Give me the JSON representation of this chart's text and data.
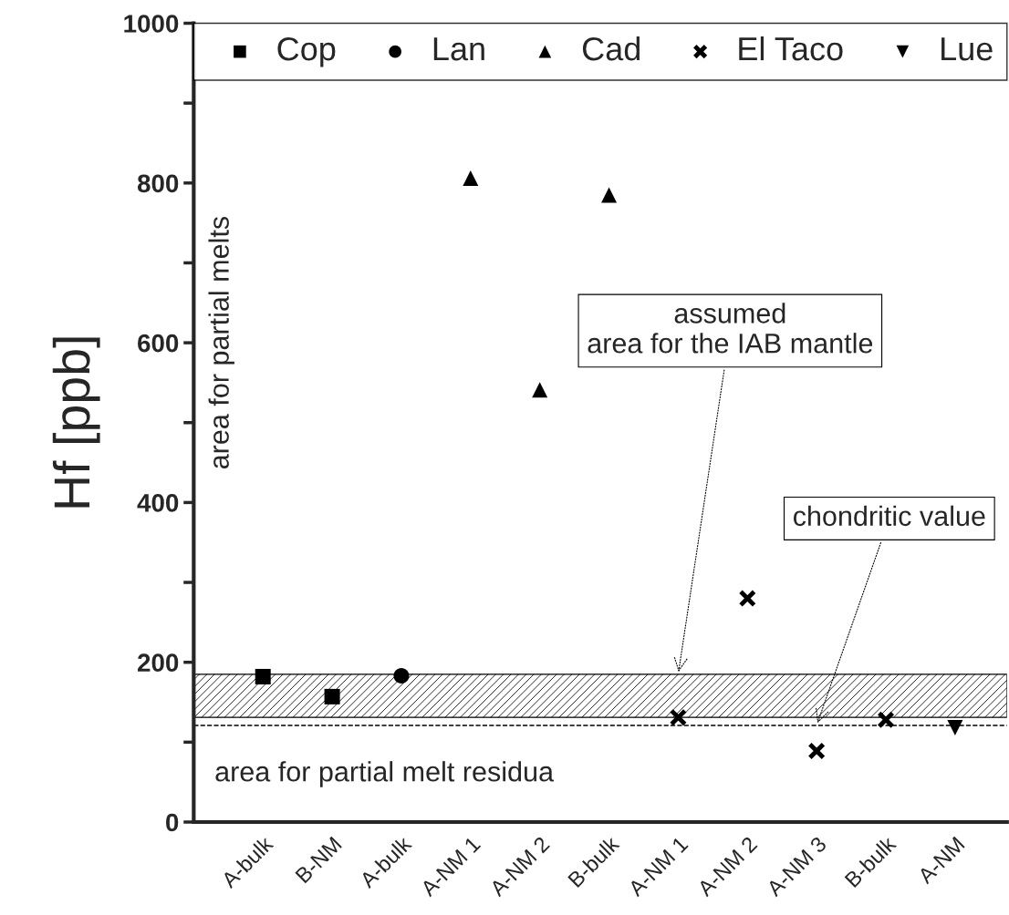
{
  "chart_data": {
    "type": "scatter",
    "ylabel": "Hf [ppb]",
    "categories": [
      "A-bulk",
      "B-NM",
      "A-bulk",
      "A-NM 1",
      "A-NM 2",
      "B-bulk",
      "A-NM 1",
      "A-NM 2",
      "A-NM 3",
      "B-bulk",
      "A-NM"
    ],
    "series": [
      {
        "name": "Cop",
        "color": "#000000",
        "marker": "square",
        "values": [
          182,
          157,
          null,
          null,
          null,
          null,
          null,
          null,
          null,
          null,
          null
        ]
      },
      {
        "name": "Lan",
        "color": "#000000",
        "marker": "circle",
        "values": [
          null,
          null,
          183,
          null,
          null,
          null,
          null,
          null,
          null,
          null,
          null
        ]
      },
      {
        "name": "Cad",
        "color": "#000000",
        "marker": "triangle",
        "values": [
          null,
          null,
          null,
          806,
          541,
          785,
          null,
          null,
          null,
          null,
          null
        ]
      },
      {
        "name": "El Taco",
        "color": "#000000",
        "marker": "cross",
        "values": [
          null,
          null,
          null,
          null,
          null,
          null,
          131,
          280,
          89,
          128,
          null
        ]
      },
      {
        "name": "Lue",
        "color": "#000000",
        "marker": "triangle_down",
        "values": [
          null,
          null,
          null,
          null,
          null,
          null,
          null,
          null,
          null,
          null,
          118
        ]
      }
    ],
    "ylim": [
      0,
      1000
    ],
    "yticks": [
      0,
      {
        "value": 100,
        "label": null
      },
      200,
      {
        "value": 300,
        "label": null
      },
      400,
      {
        "value": 500,
        "label": null
      },
      600,
      {
        "value": 700,
        "label": null
      },
      800,
      {
        "value": 900,
        "label": null
      },
      1000
    ],
    "bands": [
      {
        "axis": "y",
        "from": 131,
        "to": 185,
        "label": "assumed\narea for the IAB mantle"
      }
    ],
    "ref_lines": [
      {
        "axis": "y",
        "value": 121,
        "label": "chondritic value",
        "line_style": "dashed"
      }
    ],
    "annotations": [
      "area for partial melts",
      "area for partial melt residua"
    ],
    "legend": "top",
    "grid": false
  }
}
